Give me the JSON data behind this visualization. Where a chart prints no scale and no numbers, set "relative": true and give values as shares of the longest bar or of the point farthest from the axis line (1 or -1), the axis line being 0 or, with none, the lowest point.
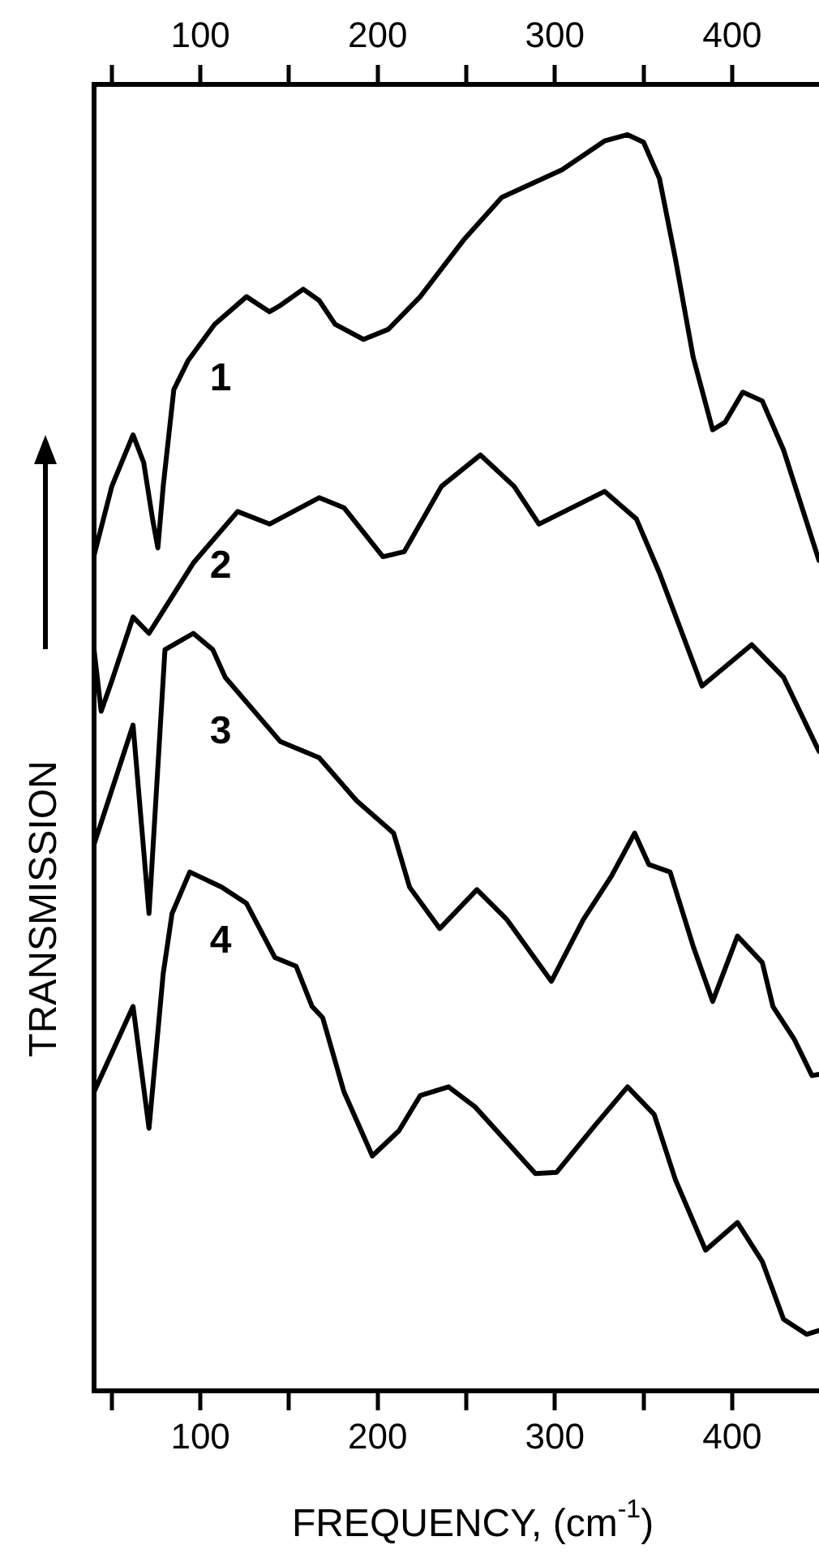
{
  "chart_data": {
    "type": "line",
    "relative": true,
    "xlabel": "FREQUENCY, (cm$^{-1}$)",
    "ylabel": "TRANSMISSION",
    "xlim": [
      40,
      449
    ],
    "xticks": [
      {
        "value": 50,
        "label": null
      },
      100,
      {
        "value": 150,
        "label": null
      },
      200,
      {
        "value": 250,
        "label": null
      },
      300,
      {
        "value": 350,
        "label": null
      },
      400
    ],
    "x2lim": [
      40,
      449
    ],
    "x2ticks": [
      {
        "value": 50,
        "label": null
      },
      100,
      {
        "value": 150,
        "label": null
      },
      200,
      {
        "value": 250,
        "label": null
      },
      300,
      {
        "value": 350,
        "label": null
      },
      400
    ],
    "marker": "none",
    "line_style": "solid",
    "series": [
      {
        "name": "1",
        "color": "#000000",
        "x": [
          40,
          50,
          62,
          68,
          73,
          76,
          79,
          85,
          93,
          108,
          126,
          139,
          145,
          158,
          167,
          176,
          192,
          206,
          224,
          249,
          270,
          304,
          328,
          341,
          350,
          359,
          368,
          378,
          389,
          396,
          406,
          417,
          429,
          449
        ],
        "values": [
          0.665,
          0.72,
          0.761,
          0.739,
          0.694,
          0.671,
          0.72,
          0.797,
          0.82,
          0.849,
          0.871,
          0.859,
          0.864,
          0.877,
          0.868,
          0.849,
          0.837,
          0.845,
          0.871,
          0.917,
          0.95,
          0.972,
          0.995,
          1.0,
          0.994,
          0.965,
          0.901,
          0.823,
          0.765,
          0.771,
          0.795,
          0.788,
          0.749,
          0.661
        ]
      },
      {
        "name": "2",
        "color": "#000000",
        "x": [
          40,
          44,
          50,
          62,
          71,
          96,
          121,
          139,
          167,
          181,
          203,
          215,
          236,
          258,
          277,
          291,
          328,
          346,
          359,
          383,
          411,
          429,
          449
        ],
        "values": [
          0.59,
          0.541,
          0.565,
          0.616,
          0.603,
          0.659,
          0.7,
          0.69,
          0.711,
          0.703,
          0.664,
          0.668,
          0.72,
          0.745,
          0.72,
          0.69,
          0.716,
          0.694,
          0.651,
          0.561,
          0.594,
          0.568,
          0.509
        ]
      },
      {
        "name": "3",
        "color": "#000000",
        "x": [
          40,
          62,
          71,
          80,
          96,
          107,
          114,
          145,
          167,
          188,
          209,
          218,
          235,
          256,
          273,
          298,
          316,
          332,
          345,
          353,
          365,
          378,
          389,
          403,
          417,
          423,
          435,
          445,
          449
        ],
        "values": [
          0.435,
          0.53,
          0.38,
          0.59,
          0.603,
          0.59,
          0.568,
          0.517,
          0.504,
          0.47,
          0.444,
          0.401,
          0.368,
          0.399,
          0.375,
          0.326,
          0.375,
          0.41,
          0.444,
          0.419,
          0.413,
          0.354,
          0.31,
          0.362,
          0.341,
          0.306,
          0.28,
          0.251,
          0.252
        ]
      },
      {
        "name": "4",
        "color": "#000000",
        "x": [
          40,
          62,
          71,
          79,
          84,
          94,
          112,
          126,
          142,
          154,
          163,
          169,
          181,
          197,
          212,
          224,
          240,
          255,
          289,
          301,
          323,
          341,
          356,
          368,
          385,
          403,
          417,
          429,
          442,
          449
        ],
        "values": [
          0.238,
          0.306,
          0.209,
          0.332,
          0.38,
          0.413,
          0.401,
          0.388,
          0.345,
          0.338,
          0.306,
          0.297,
          0.238,
          0.187,
          0.207,
          0.235,
          0.242,
          0.226,
          0.173,
          0.174,
          0.212,
          0.242,
          0.22,
          0.168,
          0.112,
          0.134,
          0.103,
          0.057,
          0.045,
          0.048
        ]
      }
    ]
  }
}
